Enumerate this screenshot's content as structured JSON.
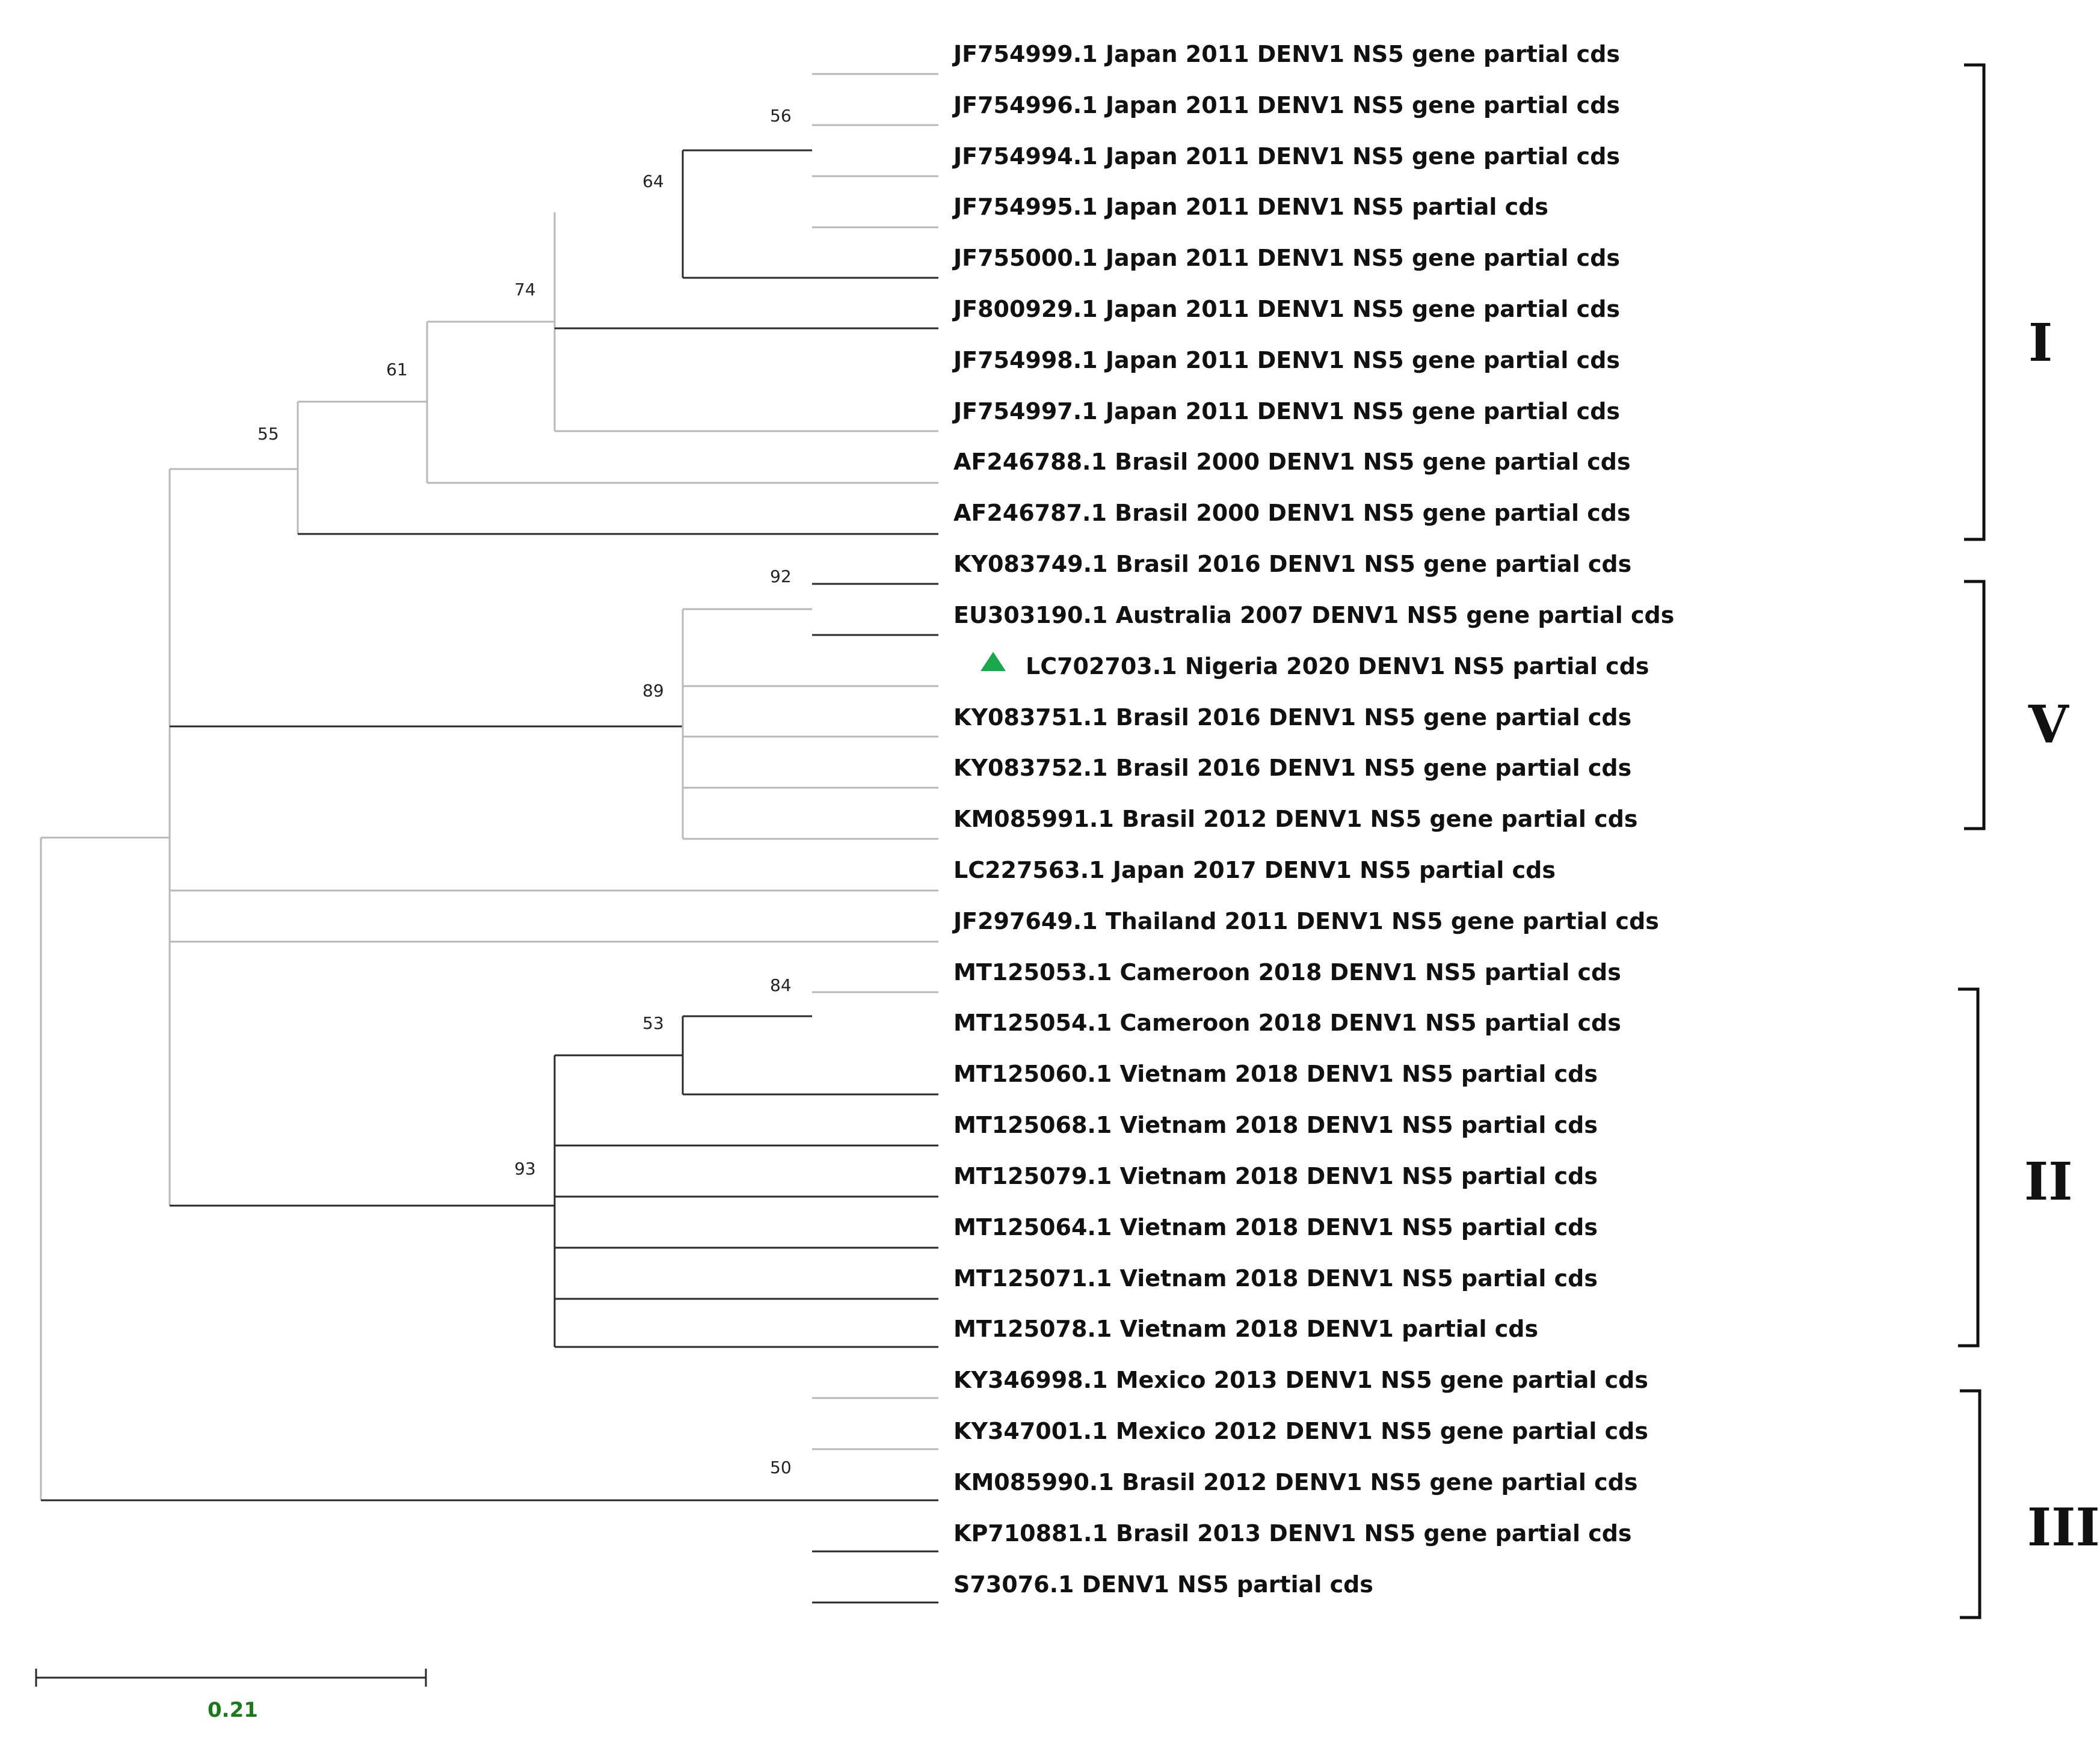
{
  "taxa": [
    "JF754999.1 Japan 2011 DENV1 NS5 gene partial cds",
    "JF754996.1 Japan 2011 DENV1 NS5 gene partial cds",
    "JF754994.1 Japan 2011 DENV1 NS5 gene partial cds",
    "JF754995.1 Japan 2011 DENV1 NS5 partial cds",
    "JF755000.1 Japan 2011 DENV1 NS5 gene partial cds",
    "JF800929.1 Japan 2011 DENV1 NS5 gene partial cds",
    "JF754998.1 Japan 2011 DENV1 NS5 gene partial cds",
    "JF754997.1 Japan 2011 DENV1 NS5 gene partial cds",
    "AF246788.1 Brasil 2000 DENV1 NS5 gene partial cds",
    "AF246787.1 Brasil 2000 DENV1 NS5 gene partial cds",
    "KY083749.1 Brasil 2016 DENV1 NS5 gene partial cds",
    "EU303190.1 Australia 2007 DENV1 NS5 gene partial cds",
    "LC702703.1 Nigeria 2020 DENV1 NS5 partial cds",
    "KY083751.1 Brasil 2016 DENV1 NS5 gene partial cds",
    "KY083752.1 Brasil 2016 DENV1 NS5 gene partial cds",
    "KM085991.1 Brasil 2012 DENV1 NS5 gene partial cds",
    "LC227563.1 Japan 2017 DENV1 NS5 partial cds",
    "JF297649.1 Thailand 2011 DENV1 NS5 gene partial cds",
    "MT125053.1 Cameroon 2018 DENV1 NS5 partial cds",
    "MT125054.1 Cameroon 2018 DENV1 NS5 partial cds",
    "MT125060.1 Vietnam 2018 DENV1 NS5 partial cds",
    "MT125068.1 Vietnam 2018 DENV1 NS5 partial cds",
    "MT125079.1 Vietnam 2018 DENV1 NS5 partial cds",
    "MT125064.1 Vietnam 2018 DENV1 NS5 partial cds",
    "MT125071.1 Vietnam 2018 DENV1 NS5 partial cds",
    "MT125078.1 Vietnam 2018 DENV1 partial cds",
    "KY346998.1 Mexico 2013 DENV1 NS5 gene partial cds",
    "KY347001.1 Mexico 2012 DENV1 NS5 gene partial cds",
    "KM085990.1 Brasil 2012 DENV1 NS5 gene partial cds",
    "KP710881.1 Brasil 2013 DENV1 NS5 gene partial cds",
    "S73076.1 DENV1 NS5 partial cds"
  ],
  "highlighted_taxon": "LC702703.1 Nigeria 2020 DENV1 NS5 partial cds",
  "highlight_marker": {
    "icon": "triangle-marker-icon",
    "color": "#1aa64a"
  },
  "bootstrap": [
    "56",
    "64",
    "74",
    "61",
    "55",
    "92",
    "89",
    "84",
    "53",
    "93",
    "50"
  ],
  "clades": [
    "I",
    "V",
    "II",
    "III"
  ],
  "scale_bar": {
    "label": "0.21",
    "color": "#1a7a1a"
  }
}
